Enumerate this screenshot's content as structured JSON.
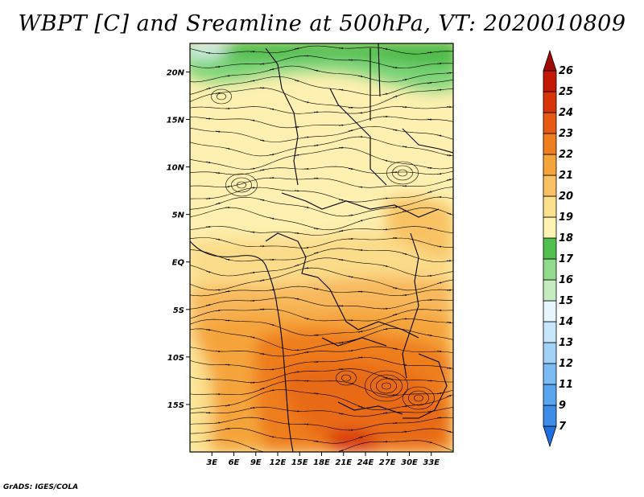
{
  "title": "WBPT [C] and Sreamline at 500hPa, VT: 2020010809",
  "credit": "GrADS: IGES/COLA",
  "map": {
    "lon_range": [
      0,
      36
    ],
    "lat_range": [
      -20,
      23
    ],
    "lon_ticks": [
      {
        "value": 3,
        "label": "3E"
      },
      {
        "value": 6,
        "label": "6E"
      },
      {
        "value": 9,
        "label": "9E"
      },
      {
        "value": 12,
        "label": "12E"
      },
      {
        "value": 15,
        "label": "15E"
      },
      {
        "value": 18,
        "label": "18E"
      },
      {
        "value": 21,
        "label": "21E"
      },
      {
        "value": 24,
        "label": "24E"
      },
      {
        "value": 27,
        "label": "27E"
      },
      {
        "value": 30,
        "label": "30E"
      },
      {
        "value": 33,
        "label": "33E"
      }
    ],
    "lat_ticks": [
      {
        "value": 20,
        "label": "20N"
      },
      {
        "value": 15,
        "label": "15N"
      },
      {
        "value": 10,
        "label": "10N"
      },
      {
        "value": 5,
        "label": "5N"
      },
      {
        "value": 0,
        "label": "EQ"
      },
      {
        "value": -5,
        "label": "5S"
      },
      {
        "value": -10,
        "label": "10S"
      },
      {
        "value": -15,
        "label": "15S"
      }
    ]
  },
  "colorbar": {
    "labels": [
      "7",
      "9",
      "11",
      "12",
      "13",
      "14",
      "15",
      "16",
      "17",
      "18",
      "19",
      "20",
      "21",
      "22",
      "23",
      "24",
      "25",
      "26"
    ],
    "colors": [
      "#1f6fe0",
      "#3c8ce8",
      "#5aa5f0",
      "#7cbcf4",
      "#a0d2f8",
      "#c8e6fa",
      "#e6f6fc",
      "#c4ecc0",
      "#90dc8c",
      "#52c04e",
      "#fdf4b4",
      "#fbe08e",
      "#f8c264",
      "#f5a43a",
      "#ee7d1e",
      "#e65a12",
      "#d8340a",
      "#c41806",
      "#a00a04"
    ]
  }
}
